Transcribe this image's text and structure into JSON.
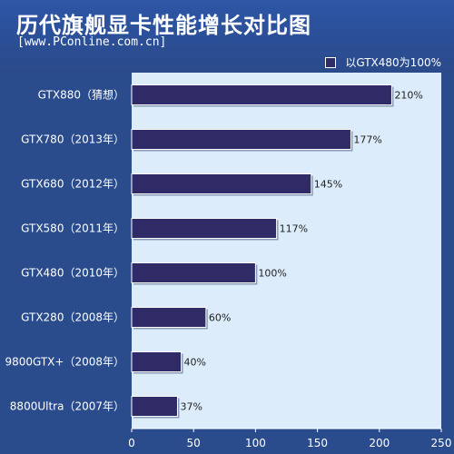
{
  "chart_data": {
    "type": "bar",
    "orientation": "horizontal",
    "title": "历代旗舰显卡性能增长对比图",
    "subtitle": "[www.PConline.com.cn]",
    "legend": [
      "以GTX480为100%"
    ],
    "legend_position": "top-right",
    "categories": [
      "GTX880（猜想）",
      "GTX780（2013年）",
      "GTX680（2012年）",
      "GTX580（2011年）",
      "GTX480（2010年）",
      "GTX280（2008年）",
      "9800GTX+（2008年）",
      "8800Ultra（2007年）"
    ],
    "values": [
      210,
      177,
      145,
      117,
      100,
      60,
      40,
      37
    ],
    "value_labels": [
      "210%",
      "177%",
      "145%",
      "117%",
      "100%",
      "60%",
      "40%",
      "37%"
    ],
    "xlim": [
      0,
      250
    ],
    "xticks": [
      0,
      50,
      100,
      150,
      200,
      250
    ],
    "grid": false,
    "colors": {
      "bar": "#2e2b66",
      "plot_bg": "#dcecfb",
      "page_bg": "#2b4c8c"
    }
  }
}
